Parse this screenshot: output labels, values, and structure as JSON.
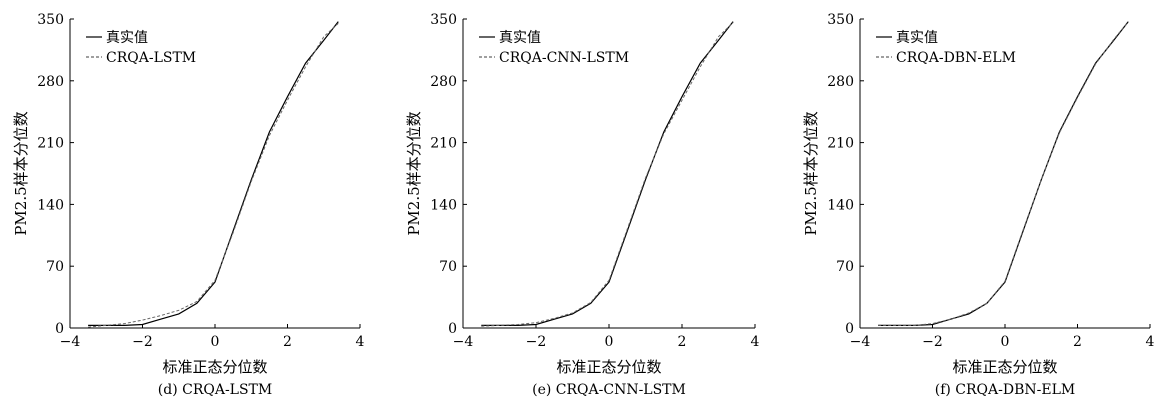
{
  "chart_data": [
    {
      "type": "line",
      "caption": "(d) CRQA-LSTM",
      "xlabel": "标准正态分位数",
      "ylabel": "PM2.5样本分位数",
      "xlim": [
        -4,
        4
      ],
      "ylim": [
        0,
        350
      ],
      "xticks": [
        -4,
        -2,
        0,
        2,
        4
      ],
      "yticks": [
        0,
        70,
        140,
        210,
        280,
        350
      ],
      "legend_position": "top-left",
      "series": [
        {
          "name": "真实值",
          "style": "solid",
          "x": [
            -3.5,
            -2.5,
            -2.0,
            -1.5,
            -1.0,
            -0.5,
            0.0,
            0.5,
            1.0,
            1.5,
            2.0,
            2.5,
            3.0,
            3.4
          ],
          "y": [
            3,
            3,
            4,
            10,
            16,
            28,
            52,
            110,
            168,
            222,
            262,
            300,
            326,
            347
          ]
        },
        {
          "name": "CRQA-LSTM",
          "style": "dashed",
          "x": [
            -3.5,
            -2.5,
            -2.0,
            -1.5,
            -1.0,
            -0.5,
            0.0,
            0.5,
            1.0,
            1.5,
            2.0,
            2.5,
            3.0,
            3.4
          ],
          "y": [
            1,
            5,
            9,
            14,
            20,
            30,
            54,
            108,
            166,
            218,
            258,
            296,
            330,
            345
          ]
        }
      ]
    },
    {
      "type": "line",
      "caption": "(e) CRQA-CNN-LSTM",
      "xlabel": "标准正态分位数",
      "ylabel": "PM2.5样本分位数",
      "xlim": [
        -4,
        4
      ],
      "ylim": [
        0,
        350
      ],
      "xticks": [
        -4,
        -2,
        0,
        2,
        4
      ],
      "yticks": [
        0,
        70,
        140,
        210,
        280,
        350
      ],
      "legend_position": "top-left",
      "series": [
        {
          "name": "真实值",
          "style": "solid",
          "x": [
            -3.5,
            -2.5,
            -2.0,
            -1.5,
            -1.0,
            -0.5,
            0.0,
            0.5,
            1.0,
            1.5,
            2.0,
            2.5,
            3.0,
            3.4
          ],
          "y": [
            3,
            3,
            4,
            10,
            16,
            28,
            52,
            110,
            168,
            222,
            262,
            300,
            326,
            347
          ]
        },
        {
          "name": "CRQA-CNN-LSTM",
          "style": "dashed",
          "x": [
            -3.5,
            -2.5,
            -2.0,
            -1.5,
            -1.0,
            -0.5,
            0.0,
            0.5,
            1.0,
            1.5,
            2.0,
            2.5,
            3.0,
            3.4
          ],
          "y": [
            2,
            4,
            6,
            11,
            17,
            29,
            54,
            112,
            170,
            220,
            258,
            296,
            330,
            346
          ]
        }
      ]
    },
    {
      "type": "line",
      "caption": "(f) CRQA-DBN-ELM",
      "xlabel": "标准正态分位数",
      "ylabel": "PM2.5样本分位数",
      "xlim": [
        -4,
        4
      ],
      "ylim": [
        0,
        350
      ],
      "xticks": [
        -4,
        -2,
        0,
        2,
        4
      ],
      "yticks": [
        0,
        70,
        140,
        210,
        280,
        350
      ],
      "legend_position": "top-left",
      "series": [
        {
          "name": "真实值",
          "style": "solid",
          "x": [
            -3.5,
            -2.5,
            -2.0,
            -1.5,
            -1.0,
            -0.5,
            0.0,
            0.5,
            1.0,
            1.5,
            2.0,
            2.5,
            3.0,
            3.4
          ],
          "y": [
            3,
            3,
            4,
            10,
            16,
            28,
            52,
            110,
            168,
            222,
            262,
            300,
            326,
            347
          ]
        },
        {
          "name": "CRQA-DBN-ELM",
          "style": "dashed",
          "x": [
            -3.5,
            -2.5,
            -2.0,
            -1.5,
            -1.0,
            -0.5,
            0.0,
            0.5,
            1.0,
            1.5,
            2.0,
            2.5,
            3.0,
            3.4
          ],
          "y": [
            3,
            3,
            5,
            10,
            17,
            28,
            53,
            111,
            168,
            221,
            261,
            299,
            327,
            347
          ]
        }
      ]
    }
  ]
}
